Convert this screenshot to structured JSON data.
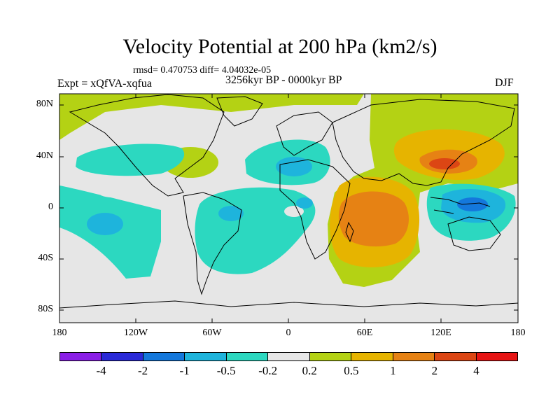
{
  "header": {
    "title": "Velocity Potential at 200 hPa (km2/s)",
    "rmsd_line": "rmsd= 0.470753 diff= 4.04032e-05",
    "expt_line": "Expt = xQfVA-xqfua",
    "period_line": "3256kyr BP - 0000kyr BP",
    "season": "DJF"
  },
  "axes": {
    "y_ticks": [
      "80N",
      "40N",
      "0",
      "40S",
      "80S"
    ],
    "x_ticks": [
      "180",
      "120W",
      "60W",
      "0",
      "60E",
      "120E",
      "180"
    ]
  },
  "colorbar": {
    "labels": [
      "-4",
      "-2",
      "-1",
      "-0.5",
      "-0.2",
      "0.2",
      "0.5",
      "1",
      "2",
      "4"
    ],
    "colors": [
      "#8a1ee6",
      "#2a2ad8",
      "#1478dc",
      "#1eb4dc",
      "#2cd8c0",
      "#e6e6e6",
      "#b4d214",
      "#e6b400",
      "#e68214",
      "#dc4614",
      "#e61414"
    ]
  },
  "palette": {
    "neutral": "#e6e6e6",
    "neg_weak": "#2cd8c0",
    "neg_med": "#1eb4dc",
    "neg_strong": "#1478dc",
    "pos_weak": "#b4d214",
    "pos_med": "#e6b400",
    "pos_strong": "#e68214",
    "pos_vstrong": "#dc4614"
  }
}
